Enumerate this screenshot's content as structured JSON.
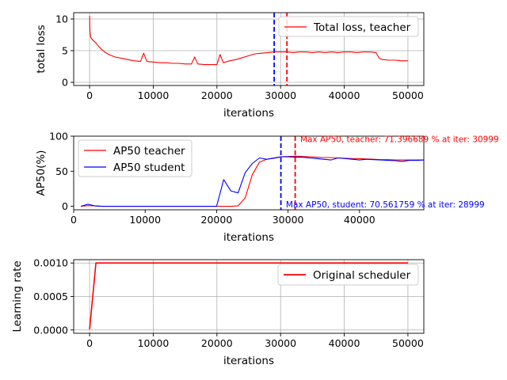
{
  "chart_data": [
    {
      "type": "line",
      "ylabel": "total loss",
      "xlabel": "iterations",
      "xlim": [
        -2500,
        52500
      ],
      "ylim": [
        -0.5,
        11
      ],
      "xticks": [
        0,
        10000,
        20000,
        30000,
        40000,
        50000
      ],
      "xtick_labels": [
        "0",
        "10000",
        "20000",
        "30000",
        "40000",
        "50000"
      ],
      "yticks": [
        0,
        5,
        10
      ],
      "ytick_labels": [
        "0",
        "5",
        "10"
      ],
      "grid": true,
      "legend_position": "upper-right",
      "series": [
        {
          "name": "Total loss, teacher",
          "color": "#ff0000",
          "x": [
            0,
            50,
            150,
            300,
            600,
            1000,
            1500,
            2000,
            2500,
            3000,
            3500,
            4000,
            5000,
            6000,
            7000,
            8000,
            8500,
            9000,
            10000,
            11000,
            12000,
            13000,
            14000,
            15000,
            16000,
            16500,
            17000,
            18000,
            19000,
            20000,
            20500,
            21000,
            22000,
            23000,
            24000,
            25000,
            26000,
            27000,
            28000,
            29000,
            30000,
            31000,
            32000,
            33000,
            34000,
            35000,
            36000,
            37000,
            38000,
            39000,
            40000,
            41000,
            42000,
            43000,
            44000,
            45000,
            45500,
            46000,
            47000,
            48000,
            49000,
            50000
          ],
          "y": [
            10.5,
            8.2,
            7.2,
            6.9,
            6.6,
            6.2,
            5.6,
            5.1,
            4.7,
            4.4,
            4.2,
            4.0,
            3.8,
            3.6,
            3.4,
            3.3,
            4.6,
            3.3,
            3.2,
            3.1,
            3.1,
            3.0,
            3.0,
            2.9,
            2.9,
            4.0,
            2.9,
            2.8,
            2.8,
            2.8,
            4.4,
            3.1,
            3.4,
            3.6,
            3.9,
            4.2,
            4.5,
            4.6,
            4.7,
            4.8,
            4.8,
            4.8,
            4.7,
            4.8,
            4.8,
            4.7,
            4.8,
            4.7,
            4.8,
            4.7,
            4.8,
            4.8,
            4.7,
            4.8,
            4.8,
            4.7,
            3.8,
            3.6,
            3.5,
            3.5,
            3.4,
            3.4
          ]
        }
      ],
      "vlines": [
        {
          "x": 28999,
          "color": "#0000ff",
          "style": "dashed"
        },
        {
          "x": 30999,
          "color": "#ff0000",
          "style": "dashed"
        }
      ]
    },
    {
      "type": "line",
      "ylabel": "AP50(%)",
      "xlabel": "iterations",
      "xlim": [
        0,
        49000
      ],
      "ylim": [
        -5,
        100
      ],
      "xticks": [
        0,
        10000,
        20000,
        30000,
        40000
      ],
      "xtick_labels": [
        "0",
        "10000",
        "20000",
        "30000",
        "40000"
      ],
      "yticks": [
        0,
        50,
        100
      ],
      "ytick_labels": [
        "0",
        "50",
        "100"
      ],
      "grid": false,
      "legend_position": "upper-left",
      "series": [
        {
          "name": "AP50 teacher",
          "color": "#ff0000",
          "x": [
            999,
            1999,
            2999,
            3999,
            5999,
            9999,
            14999,
            19999,
            20999,
            21999,
            22999,
            23999,
            24999,
            25999,
            26999,
            27999,
            28999,
            29999,
            30999,
            31999,
            32999,
            33999,
            34999,
            35999,
            36999,
            37999,
            38999,
            39999,
            40999,
            41999,
            42999,
            43999,
            44999,
            45999,
            46999,
            47999,
            48999
          ],
          "y": [
            0,
            1,
            0.5,
            0,
            0,
            0,
            0,
            0,
            0,
            0,
            0.5,
            12,
            45,
            63,
            67,
            69,
            70.5,
            71,
            71.4,
            71,
            70.5,
            70,
            69.5,
            69.5,
            69,
            68.5,
            68,
            68,
            67.5,
            67,
            66.5,
            66.5,
            66,
            66,
            66,
            66,
            66
          ]
        },
        {
          "name": "AP50 student",
          "color": "#0000ff",
          "x": [
            999,
            1999,
            2999,
            3999,
            5999,
            9999,
            14999,
            19999,
            20999,
            21999,
            22999,
            23999,
            24999,
            25999,
            26999,
            27999,
            28999,
            29999,
            30999,
            31999,
            32999,
            33999,
            34999,
            35999,
            36999,
            37999,
            38999,
            39999,
            40999,
            41999,
            42999,
            43999,
            44999,
            45999,
            46999,
            47999,
            48999
          ],
          "y": [
            0,
            3,
            0.5,
            0,
            0,
            0,
            0,
            0,
            38,
            22,
            19,
            48,
            61,
            69,
            67,
            68.5,
            70.56,
            70.5,
            70,
            70,
            69,
            68,
            67,
            66,
            69,
            68,
            67,
            66,
            67,
            66.5,
            66,
            65.5,
            65,
            64,
            65.5,
            65.5,
            66
          ]
        }
      ],
      "vlines": [
        {
          "x": 28999,
          "color": "#0000ff",
          "style": "dashed"
        },
        {
          "x": 30999,
          "color": "#ff0000",
          "style": "dashed"
        }
      ],
      "annotations": [
        {
          "text": "Max AP50, teacher: 71.396689 % at iter: 30999",
          "color": "#ff0000",
          "x": 31700,
          "y": 96
        },
        {
          "text": "Max AP50, student: 70.561759 % at iter: 28999",
          "color": "#0000ff",
          "x": 29700,
          "y": 3
        }
      ]
    },
    {
      "type": "line",
      "ylabel": "Learning rate",
      "xlabel": "iterations",
      "xlim": [
        -2500,
        52500
      ],
      "ylim": [
        -5e-05,
        0.00105
      ],
      "xticks": [
        0,
        10000,
        20000,
        30000,
        40000,
        50000
      ],
      "xtick_labels": [
        "0",
        "10000",
        "20000",
        "30000",
        "40000",
        "50000"
      ],
      "yticks": [
        0,
        0.0005,
        0.001
      ],
      "ytick_labels": [
        "0.0000",
        "0.0005",
        "0.0010"
      ],
      "grid": true,
      "legend_position": "upper-right",
      "series": [
        {
          "name": "Original scheduler",
          "color": "#ff0000",
          "x": [
            0,
            1000,
            50000
          ],
          "y": [
            1e-05,
            0.001,
            0.001
          ]
        }
      ]
    }
  ]
}
